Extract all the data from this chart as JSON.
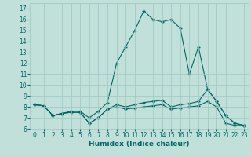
{
  "title": "",
  "xlabel": "Humidex (Indice chaleur)",
  "bg_color": "#c2e0da",
  "grid_color": "#9dc8c0",
  "line_color": "#006868",
  "xlim": [
    -0.5,
    23.5
  ],
  "ylim": [
    6,
    17.5
  ],
  "xticks": [
    0,
    1,
    2,
    3,
    4,
    5,
    6,
    7,
    8,
    9,
    10,
    11,
    12,
    13,
    14,
    15,
    16,
    17,
    18,
    19,
    20,
    21,
    22,
    23
  ],
  "yticks": [
    6,
    7,
    8,
    9,
    10,
    11,
    12,
    13,
    14,
    15,
    16,
    17
  ],
  "curve1_x": [
    0,
    1,
    2,
    3,
    4,
    5,
    6,
    7,
    8,
    9,
    10,
    11,
    12,
    13,
    14,
    15,
    16,
    17,
    18,
    19,
    20,
    21,
    22,
    23
  ],
  "curve1_y": [
    8.2,
    8.1,
    7.2,
    7.4,
    7.6,
    7.6,
    7.0,
    7.6,
    8.4,
    12.0,
    13.5,
    15.0,
    16.8,
    16.0,
    15.8,
    16.0,
    15.2,
    11.0,
    13.5,
    9.6,
    8.5,
    7.2,
    6.5,
    6.3
  ],
  "curve2_x": [
    0,
    1,
    2,
    3,
    4,
    5,
    6,
    7,
    8,
    9,
    10,
    11,
    12,
    13,
    14,
    15,
    16,
    17,
    18,
    19,
    20,
    21,
    22,
    23
  ],
  "curve2_y": [
    8.2,
    8.1,
    7.2,
    7.4,
    7.5,
    7.5,
    6.5,
    7.0,
    7.8,
    8.2,
    8.0,
    8.2,
    8.4,
    8.5,
    8.6,
    8.0,
    8.2,
    8.3,
    8.5,
    9.6,
    8.5,
    7.2,
    6.5,
    6.3
  ],
  "curve3_x": [
    0,
    1,
    2,
    3,
    4,
    5,
    6,
    7,
    8,
    9,
    10,
    11,
    12,
    13,
    14,
    15,
    16,
    17,
    18,
    19,
    20,
    21,
    22,
    23
  ],
  "curve3_y": [
    8.2,
    8.1,
    7.2,
    7.4,
    7.5,
    7.5,
    6.5,
    7.0,
    7.8,
    8.0,
    7.8,
    7.9,
    8.0,
    8.1,
    8.2,
    7.8,
    7.9,
    8.0,
    8.1,
    8.5,
    8.0,
    6.5,
    6.3,
    6.3
  ],
  "tick_fontsize": 5.5,
  "xlabel_fontsize": 6.5
}
